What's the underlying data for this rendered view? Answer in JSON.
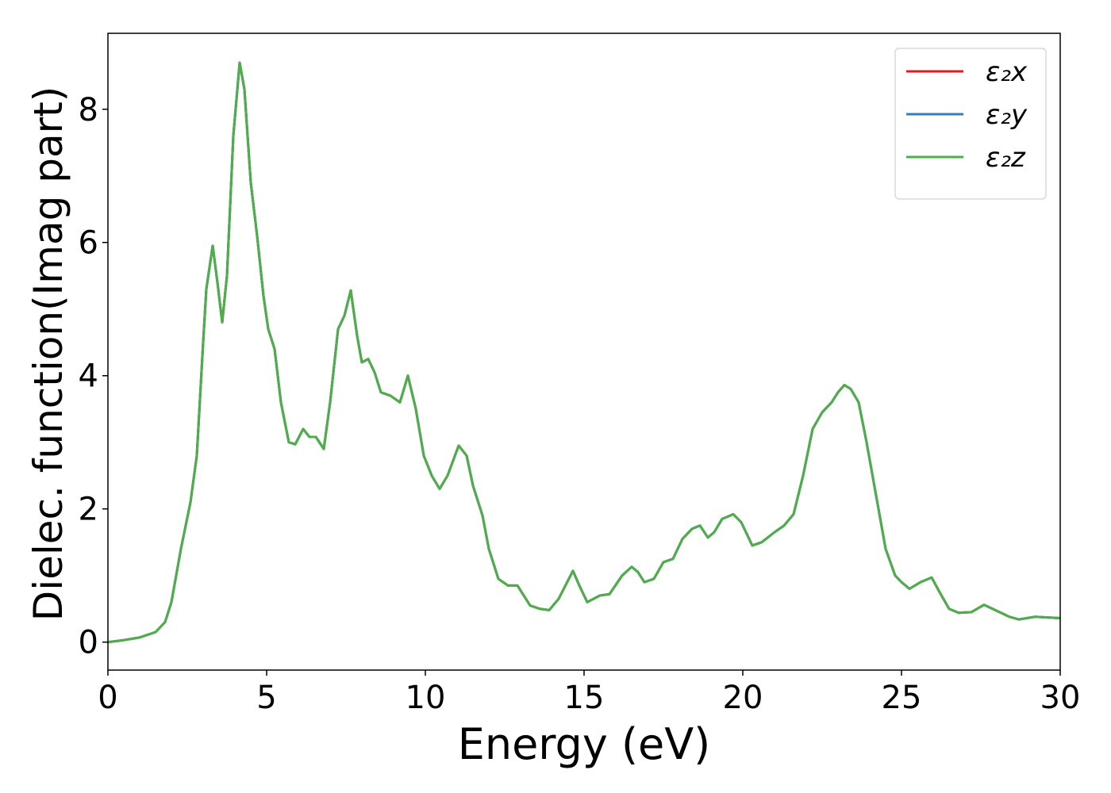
{
  "chart_data": {
    "type": "line",
    "xlabel": "Energy (eV)",
    "ylabel": "Dielec. function(Imag part)",
    "x": [
      0,
      0.5,
      1,
      1.5,
      1.8,
      2,
      2.3,
      2.6,
      2.8,
      3.0,
      3.1,
      3.3,
      3.45,
      3.6,
      3.75,
      3.95,
      4.15,
      4.3,
      4.5,
      4.7,
      4.9,
      5.05,
      5.25,
      5.45,
      5.7,
      5.9,
      6.15,
      6.35,
      6.55,
      6.8,
      7.0,
      7.25,
      7.45,
      7.65,
      7.85,
      8.0,
      8.2,
      8.4,
      8.6,
      8.9,
      9.2,
      9.45,
      9.7,
      9.95,
      10.2,
      10.45,
      10.7,
      11.05,
      11.3,
      11.5,
      11.8,
      12.0,
      12.3,
      12.6,
      12.9,
      13.3,
      13.6,
      13.9,
      14.2,
      14.65,
      14.85,
      15.1,
      15.5,
      15.8,
      16.2,
      16.5,
      16.7,
      16.9,
      17.2,
      17.5,
      17.8,
      18.1,
      18.4,
      18.65,
      18.9,
      19.1,
      19.35,
      19.7,
      19.95,
      20.3,
      20.6,
      21.0,
      21.3,
      21.6,
      21.9,
      22.2,
      22.5,
      22.8,
      23.0,
      23.2,
      23.4,
      23.65,
      23.9,
      24.2,
      24.5,
      24.8,
      25.0,
      25.25,
      25.6,
      25.95,
      26.2,
      26.5,
      26.8,
      27.2,
      27.6,
      28.0,
      28.4,
      28.7,
      29.2,
      29.6,
      30
    ],
    "series": [
      {
        "name": "ε₂x",
        "color": "#e41a1c",
        "values": [
          0,
          0.03,
          0.07,
          0.15,
          0.3,
          0.6,
          1.4,
          2.1,
          2.8,
          4.5,
          5.3,
          5.95,
          5.4,
          4.8,
          5.5,
          7.6,
          8.7,
          8.3,
          6.9,
          6.1,
          5.2,
          4.7,
          4.4,
          3.6,
          3.0,
          2.97,
          3.2,
          3.08,
          3.08,
          2.9,
          3.6,
          4.7,
          4.9,
          5.28,
          4.6,
          4.2,
          4.25,
          4.05,
          3.75,
          3.7,
          3.6,
          4.0,
          3.5,
          2.8,
          2.5,
          2.3,
          2.5,
          2.95,
          2.8,
          2.35,
          1.9,
          1.4,
          0.95,
          0.85,
          0.85,
          0.55,
          0.5,
          0.48,
          0.65,
          1.07,
          0.85,
          0.6,
          0.7,
          0.72,
          1.0,
          1.13,
          1.05,
          0.9,
          0.95,
          1.2,
          1.25,
          1.55,
          1.7,
          1.75,
          1.57,
          1.65,
          1.85,
          1.92,
          1.8,
          1.45,
          1.5,
          1.65,
          1.75,
          1.92,
          2.5,
          3.2,
          3.45,
          3.6,
          3.75,
          3.86,
          3.8,
          3.6,
          3.0,
          2.2,
          1.4,
          1.0,
          0.9,
          0.8,
          0.9,
          0.97,
          0.75,
          0.5,
          0.44,
          0.45,
          0.56,
          0.47,
          0.38,
          0.34,
          0.38,
          0.37,
          0.36
        ]
      },
      {
        "name": "ε₂y",
        "color": "#377eb8",
        "values": [
          0,
          0.03,
          0.07,
          0.15,
          0.3,
          0.6,
          1.4,
          2.1,
          2.8,
          4.5,
          5.3,
          5.95,
          5.4,
          4.8,
          5.5,
          7.6,
          8.7,
          8.3,
          6.9,
          6.1,
          5.2,
          4.7,
          4.4,
          3.6,
          3.0,
          2.97,
          3.2,
          3.08,
          3.08,
          2.9,
          3.6,
          4.7,
          4.9,
          5.28,
          4.6,
          4.2,
          4.25,
          4.05,
          3.75,
          3.7,
          3.6,
          4.0,
          3.5,
          2.8,
          2.5,
          2.3,
          2.5,
          2.95,
          2.8,
          2.35,
          1.9,
          1.4,
          0.95,
          0.85,
          0.85,
          0.55,
          0.5,
          0.48,
          0.65,
          1.07,
          0.85,
          0.6,
          0.7,
          0.72,
          1.0,
          1.13,
          1.05,
          0.9,
          0.95,
          1.2,
          1.25,
          1.55,
          1.7,
          1.75,
          1.57,
          1.65,
          1.85,
          1.92,
          1.8,
          1.45,
          1.5,
          1.65,
          1.75,
          1.92,
          2.5,
          3.2,
          3.45,
          3.6,
          3.75,
          3.86,
          3.8,
          3.6,
          3.0,
          2.2,
          1.4,
          1.0,
          0.9,
          0.8,
          0.9,
          0.97,
          0.75,
          0.5,
          0.44,
          0.45,
          0.56,
          0.47,
          0.38,
          0.34,
          0.38,
          0.37,
          0.36
        ]
      },
      {
        "name": "ε₂z",
        "color": "#4daf4a",
        "values": [
          0,
          0.03,
          0.07,
          0.15,
          0.3,
          0.6,
          1.4,
          2.1,
          2.8,
          4.5,
          5.3,
          5.95,
          5.4,
          4.8,
          5.5,
          7.6,
          8.7,
          8.3,
          6.9,
          6.1,
          5.2,
          4.7,
          4.4,
          3.6,
          3.0,
          2.97,
          3.2,
          3.08,
          3.08,
          2.9,
          3.6,
          4.7,
          4.9,
          5.28,
          4.6,
          4.2,
          4.25,
          4.05,
          3.75,
          3.7,
          3.6,
          4.0,
          3.5,
          2.8,
          2.5,
          2.3,
          2.5,
          2.95,
          2.8,
          2.35,
          1.9,
          1.4,
          0.95,
          0.85,
          0.85,
          0.55,
          0.5,
          0.48,
          0.65,
          1.07,
          0.85,
          0.6,
          0.7,
          0.72,
          1.0,
          1.13,
          1.05,
          0.9,
          0.95,
          1.2,
          1.25,
          1.55,
          1.7,
          1.75,
          1.57,
          1.65,
          1.85,
          1.92,
          1.8,
          1.45,
          1.5,
          1.65,
          1.75,
          1.92,
          2.5,
          3.2,
          3.45,
          3.6,
          3.75,
          3.86,
          3.8,
          3.6,
          3.0,
          2.2,
          1.4,
          1.0,
          0.9,
          0.8,
          0.9,
          0.97,
          0.75,
          0.5,
          0.44,
          0.45,
          0.56,
          0.47,
          0.38,
          0.34,
          0.38,
          0.37,
          0.36
        ]
      }
    ],
    "xlim": [
      0,
      30
    ],
    "xticks": [
      0,
      5,
      10,
      15,
      20,
      25,
      30
    ],
    "ylim": [
      -0.42,
      9.14
    ],
    "yticks": [
      0,
      2,
      4,
      6,
      8
    ],
    "legend": "upper right"
  }
}
